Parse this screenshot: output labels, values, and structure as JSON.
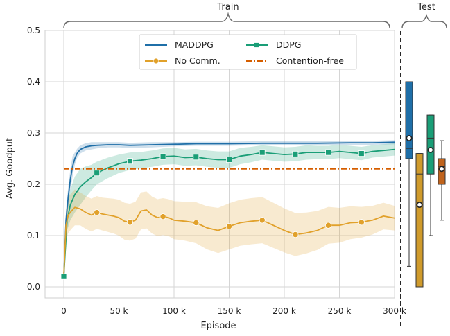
{
  "chart_data": {
    "type": "line",
    "section_labels": {
      "train": "Train",
      "test": "Test"
    },
    "xlabel": "Episode",
    "ylabel": "Avg. Goodput",
    "xlim": [
      0,
      300000
    ],
    "ylim": [
      0.0,
      0.5
    ],
    "x_ticks": [
      0,
      50000,
      100000,
      150000,
      200000,
      250000,
      300000
    ],
    "x_tick_labels": [
      "0",
      "50 k",
      "100 k",
      "150 k",
      "200 k",
      "250 k",
      "300 k"
    ],
    "y_ticks": [
      0.0,
      0.1,
      0.2,
      0.3,
      0.4,
      0.5
    ],
    "y_tick_labels": [
      "0.0",
      "0.1",
      "0.2",
      "0.3",
      "0.4",
      "0.5"
    ],
    "grid": true,
    "legend_position": "top-center",
    "series": [
      {
        "name": "MADDPG",
        "color": "#1f6fa8",
        "marker": "none",
        "style": "solid",
        "x": [
          0,
          2000,
          4000,
          6000,
          8000,
          10000,
          12000,
          15000,
          20000,
          25000,
          30000,
          40000,
          50000,
          60000,
          80000,
          100000,
          120000,
          150000,
          180000,
          200000,
          230000,
          260000,
          280000,
          300000
        ],
        "y": [
          0.02,
          0.13,
          0.175,
          0.21,
          0.235,
          0.25,
          0.26,
          0.268,
          0.273,
          0.275,
          0.276,
          0.277,
          0.277,
          0.276,
          0.277,
          0.278,
          0.279,
          0.279,
          0.28,
          0.28,
          0.28,
          0.281,
          0.281,
          0.282
        ],
        "band": [
          0.006,
          0.02,
          0.02,
          0.02,
          0.02,
          0.012,
          0.009,
          0.008,
          0.007,
          0.007,
          0.006,
          0.005,
          0.005,
          0.005,
          0.005,
          0.004,
          0.004,
          0.004,
          0.004,
          0.004,
          0.004,
          0.004,
          0.004,
          0.004
        ]
      },
      {
        "name": "DDPG",
        "color": "#1a9e77",
        "marker": "square",
        "style": "solid",
        "x": [
          0,
          3000,
          6000,
          10000,
          15000,
          20000,
          25000,
          30000,
          40000,
          50000,
          60000,
          70000,
          80000,
          90000,
          100000,
          110000,
          120000,
          130000,
          140000,
          150000,
          160000,
          170000,
          180000,
          190000,
          200000,
          210000,
          220000,
          230000,
          240000,
          250000,
          260000,
          270000,
          280000,
          290000,
          300000
        ],
        "y": [
          0.02,
          0.13,
          0.16,
          0.18,
          0.195,
          0.205,
          0.213,
          0.222,
          0.232,
          0.24,
          0.245,
          0.247,
          0.25,
          0.254,
          0.255,
          0.252,
          0.253,
          0.25,
          0.248,
          0.248,
          0.255,
          0.258,
          0.262,
          0.26,
          0.258,
          0.259,
          0.262,
          0.262,
          0.262,
          0.264,
          0.262,
          0.26,
          0.264,
          0.266,
          0.268
        ],
        "band": [
          0.006,
          0.02,
          0.03,
          0.035,
          0.035,
          0.03,
          0.025,
          0.022,
          0.02,
          0.018,
          0.017,
          0.016,
          0.016,
          0.016,
          0.016,
          0.016,
          0.016,
          0.016,
          0.016,
          0.016,
          0.016,
          0.015,
          0.014,
          0.014,
          0.014,
          0.014,
          0.014,
          0.013,
          0.013,
          0.013,
          0.013,
          0.013,
          0.012,
          0.012,
          0.012
        ],
        "marker_x": [
          0,
          30000,
          60000,
          90000,
          120000,
          150000,
          180000,
          210000,
          240000,
          270000
        ]
      },
      {
        "name": "No Comm.",
        "color": "#e1a12b",
        "marker": "circle",
        "style": "solid",
        "x": [
          0,
          2000,
          4000,
          7000,
          10000,
          15000,
          20000,
          25000,
          30000,
          35000,
          40000,
          45000,
          50000,
          55000,
          60000,
          65000,
          70000,
          75000,
          80000,
          85000,
          90000,
          95000,
          100000,
          110000,
          120000,
          130000,
          140000,
          150000,
          160000,
          170000,
          180000,
          190000,
          200000,
          210000,
          220000,
          230000,
          240000,
          250000,
          260000,
          270000,
          280000,
          290000,
          300000
        ],
        "y": [
          0.02,
          0.12,
          0.14,
          0.148,
          0.155,
          0.152,
          0.145,
          0.14,
          0.145,
          0.142,
          0.14,
          0.138,
          0.135,
          0.128,
          0.126,
          0.13,
          0.148,
          0.15,
          0.14,
          0.135,
          0.137,
          0.135,
          0.13,
          0.128,
          0.125,
          0.115,
          0.11,
          0.118,
          0.125,
          0.128,
          0.13,
          0.12,
          0.11,
          0.102,
          0.105,
          0.11,
          0.12,
          0.12,
          0.125,
          0.126,
          0.13,
          0.138,
          0.134
        ],
        "band": [
          0.006,
          0.03,
          0.035,
          0.035,
          0.035,
          0.032,
          0.032,
          0.032,
          0.032,
          0.032,
          0.033,
          0.034,
          0.035,
          0.036,
          0.036,
          0.036,
          0.036,
          0.036,
          0.036,
          0.036,
          0.036,
          0.036,
          0.037,
          0.038,
          0.04,
          0.042,
          0.044,
          0.045,
          0.045,
          0.045,
          0.045,
          0.044,
          0.043,
          0.042,
          0.04,
          0.038,
          0.036,
          0.034,
          0.032,
          0.03,
          0.028,
          0.026,
          0.024
        ],
        "marker_x": [
          30000,
          60000,
          90000,
          120000,
          150000,
          180000,
          210000,
          240000,
          270000
        ]
      },
      {
        "name": "Contention-free",
        "color": "#d55e00",
        "marker": "none",
        "style": "dashdot",
        "x": [
          0,
          300000
        ],
        "y": [
          0.23,
          0.23
        ]
      }
    ],
    "test_boxes": [
      {
        "name": "MADDPG",
        "color": "#1f6fa8",
        "min": 0.04,
        "q1": 0.25,
        "median": 0.27,
        "q3": 0.4,
        "max": 0.4,
        "mean": 0.29
      },
      {
        "name": "No Comm.",
        "color": "#d09b2c",
        "min": 0.0,
        "q1": 0.0,
        "median": 0.22,
        "q3": 0.26,
        "max": 0.26,
        "mean": 0.16
      },
      {
        "name": "DDPG",
        "color": "#1a9e77",
        "min": 0.1,
        "q1": 0.22,
        "median": 0.29,
        "q3": 0.335,
        "max": 0.335,
        "mean": 0.267
      },
      {
        "name": "Contention-free",
        "color": "#c0631c",
        "min": 0.13,
        "q1": 0.2,
        "median": 0.235,
        "q3": 0.25,
        "max": 0.285,
        "mean": 0.23
      }
    ]
  }
}
